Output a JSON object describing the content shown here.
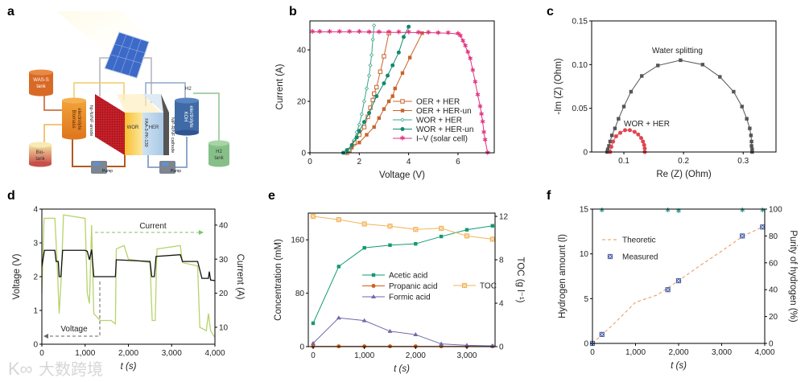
{
  "panels": [
    "a",
    "b",
    "c",
    "d",
    "e",
    "f"
  ],
  "watermark": "大数跨境",
  "diagram": {
    "was_tank": [
      "WAS-S",
      "tank"
    ],
    "biomass": [
      "Biomass",
      "electrolyte"
    ],
    "bio_tank": [
      "Bio-",
      "tank"
    ],
    "anode": "hp-Ni/NF anode",
    "wor": "WOR",
    "membrane": "FAA-3-PK-130",
    "her": "HER",
    "cathode": "NiP-R/NF cathode",
    "koh": [
      "KOH",
      "electrolyte"
    ],
    "h2": "H2",
    "h2_tank": [
      "H2",
      "tank"
    ],
    "pump1": "Pump",
    "pump2": "Pump"
  },
  "chart_data": [
    {
      "panel": "b",
      "type": "line",
      "xlabel": "Voltage (V)",
      "ylabel": "Current (A)",
      "xlim": [
        0,
        7.47
      ],
      "ylim": [
        0,
        51.25
      ],
      "xticks": [
        0,
        2,
        4,
        6
      ],
      "yticks": [
        0,
        20,
        40
      ],
      "legend_position": "center-right",
      "series": [
        {
          "name": "OER + HER",
          "color": "#c8642a",
          "marker": "square-open",
          "x": [
            1.5,
            1.6,
            1.8,
            2.0,
            2.2,
            2.35,
            2.45,
            2.55,
            2.6,
            2.7,
            2.85,
            3.0,
            3.2
          ],
          "y": [
            0,
            1,
            4,
            7,
            10,
            14,
            17.5,
            20.5,
            23,
            25.5,
            31.5,
            37.5,
            46.5
          ]
        },
        {
          "name": "OER + HER-un",
          "color": "#c8642a",
          "marker": "square",
          "x": [
            1.45,
            1.7,
            2.0,
            2.3,
            2.6,
            2.8,
            3.0,
            3.2,
            3.35,
            3.45,
            3.75,
            4.05,
            4.55
          ],
          "y": [
            0,
            2,
            4,
            7,
            10,
            13.5,
            17,
            20,
            22,
            25,
            31,
            37,
            46.5
          ]
        },
        {
          "name": "WOR + HER",
          "color": "#3aa58a",
          "marker": "diamond",
          "x": [
            1.45,
            1.6,
            1.7,
            1.8,
            1.9,
            2.0,
            2.1,
            2.2,
            2.3,
            2.4,
            2.45,
            2.5,
            2.55,
            2.6
          ],
          "y": [
            0,
            1,
            3,
            5,
            8,
            11,
            15,
            20,
            25,
            30,
            34,
            38,
            44,
            49.5
          ]
        },
        {
          "name": "WOR + HER-un",
          "color": "#13896d",
          "marker": "circle",
          "x": [
            1.35,
            1.5,
            1.7,
            1.9,
            2.0,
            2.2,
            2.4,
            2.7,
            3.0,
            3.15,
            3.35,
            3.6,
            3.8,
            4.0
          ],
          "y": [
            0,
            1,
            3,
            6,
            8.5,
            12,
            15.5,
            22,
            27,
            30,
            34,
            39,
            45,
            49
          ]
        },
        {
          "name": "I–V (solar cell)",
          "color": "#e0337f",
          "marker": "star",
          "x": [
            0.1,
            0.4,
            0.8,
            1.2,
            1.6,
            2.0,
            2.4,
            2.8,
            3.2,
            3.6,
            4.0,
            4.4,
            4.8,
            5.2,
            5.6,
            6.0,
            6.1,
            6.2,
            6.3,
            6.4,
            6.5,
            6.6,
            6.7,
            6.8,
            6.9,
            6.95,
            7.0,
            7.05,
            7.1,
            7.2
          ],
          "y": [
            47,
            47,
            47,
            47,
            47,
            47,
            46.9,
            46.9,
            46.8,
            46.8,
            46.8,
            46.7,
            46.7,
            46.6,
            46.5,
            46.2,
            45.5,
            43.5,
            41.5,
            39,
            36.5,
            32,
            27.5,
            22.5,
            18,
            15,
            12,
            8,
            5,
            0
          ]
        }
      ]
    },
    {
      "panel": "c",
      "type": "scatter",
      "xlabel": "Re (Z) (Ohm)",
      "ylabel": "-Im (Z) (Ohm)",
      "xlim": [
        0.046,
        0.355
      ],
      "ylim": [
        0,
        0.15
      ],
      "xticks": [
        0.1,
        0.2,
        0.3
      ],
      "yticks": [
        0,
        0.05,
        0.1,
        0.15
      ],
      "xtick_labels": [
        "0.1",
        "0.2",
        "0.3"
      ],
      "ytick_labels": [
        "0",
        "0.05",
        "0.10",
        "0.15"
      ],
      "annotations": [
        "Water splitting",
        "WOR + HER"
      ],
      "series": [
        {
          "name": "Water splitting",
          "color": "#555555",
          "marker": "square",
          "x": [
            0.072,
            0.073,
            0.075,
            0.077,
            0.08,
            0.085,
            0.091,
            0.1,
            0.112,
            0.13,
            0.157,
            0.195,
            0.232,
            0.261,
            0.284,
            0.298,
            0.306,
            0.311,
            0.313,
            0.314,
            0.314,
            0.315,
            0.315
          ],
          "y": [
            0,
            0.003,
            0.007,
            0.012,
            0.019,
            0.027,
            0.038,
            0.052,
            0.069,
            0.087,
            0.099,
            0.105,
            0.1,
            0.086,
            0.069,
            0.052,
            0.038,
            0.027,
            0.019,
            0.012,
            0.007,
            0.003,
            0
          ]
        },
        {
          "name": "WOR + HER",
          "color": "#e0454f",
          "marker": "circle",
          "x": [
            0.077,
            0.079,
            0.082,
            0.087,
            0.094,
            0.102,
            0.11,
            0.118,
            0.124,
            0.129,
            0.132,
            0.134,
            0.135,
            0.135
          ],
          "y": [
            0,
            0.006,
            0.012,
            0.018,
            0.022,
            0.025,
            0.025,
            0.023,
            0.02,
            0.016,
            0.012,
            0.008,
            0.004,
            0
          ]
        }
      ]
    },
    {
      "panel": "d",
      "type": "line",
      "xlabel": "t (s)",
      "ylabel": "Voltage (V)",
      "y2label": "Current (A)",
      "xlim": [
        0,
        4000
      ],
      "ylim": [
        0,
        4
      ],
      "y2lim": [
        5.03,
        44.7
      ],
      "xticks": [
        0,
        1000,
        2000,
        3000,
        4000
      ],
      "xtick_labels": [
        "0",
        "1,000",
        "2,000",
        "3,000",
        "4,000"
      ],
      "yticks": [
        0,
        1,
        2,
        3,
        4
      ],
      "y2ticks": [
        10,
        20,
        30,
        40
      ],
      "annotations": [
        "Current",
        "Voltage"
      ],
      "series": [
        {
          "name": "Current",
          "axis": "y2",
          "color": "#b7d36b",
          "x": [
            0,
            50,
            300,
            350,
            400,
            450,
            500,
            1000,
            1050,
            1100,
            1150,
            1200,
            1350,
            1600,
            1700,
            1720,
            1900,
            2000,
            2500,
            2550,
            2620,
            2660,
            3200,
            3250,
            3600,
            3650,
            3800,
            3850,
            3900,
            4000
          ],
          "y": [
            20,
            42,
            42,
            30,
            14,
            25,
            43,
            42,
            20,
            17,
            40,
            14,
            12,
            12,
            11,
            33,
            34,
            30,
            29,
            12,
            12,
            33,
            34,
            29,
            28,
            10,
            9,
            14,
            9,
            7
          ]
        },
        {
          "name": "Voltage",
          "axis": "y",
          "color": "#111111",
          "x": [
            0,
            60,
            300,
            330,
            380,
            400,
            440,
            480,
            1000,
            1050,
            1100,
            1150,
            1200,
            1700,
            1720,
            2500,
            2540,
            2600,
            2640,
            3200,
            3250,
            3600,
            3700,
            3850,
            3870,
            3900,
            4000
          ],
          "y": [
            2.3,
            2.78,
            2.78,
            2.45,
            2.45,
            2.0,
            2.0,
            2.78,
            2.78,
            2.75,
            2.5,
            2.8,
            2.0,
            2.0,
            2.5,
            2.45,
            2.0,
            2.0,
            2.6,
            2.65,
            2.45,
            2.45,
            1.95,
            1.95,
            2.15,
            1.9,
            1.88
          ]
        }
      ]
    },
    {
      "panel": "e",
      "type": "line",
      "xlabel": "t (s)",
      "ylabel": "Concentration (mM)",
      "y2label": "TOC (g l⁻¹)",
      "xlim": [
        -94,
        3550
      ],
      "ylim": [
        0,
        200
      ],
      "y2lim": [
        0,
        12.3
      ],
      "xticks": [
        0,
        1000,
        2000,
        3000
      ],
      "xtick_labels": [
        "0",
        "1,000",
        "2,000",
        "3,000"
      ],
      "yticks": [
        0,
        80,
        160
      ],
      "y2ticks": [
        0,
        4,
        8,
        12
      ],
      "legend_position": "center",
      "series": [
        {
          "name": "Acetic acid",
          "axis": "y",
          "color": "#139a73",
          "marker": "square",
          "x": [
            0,
            500,
            1000,
            1500,
            2000,
            2500,
            3000,
            3500
          ],
          "y": [
            35,
            120,
            148,
            152,
            154,
            165,
            175,
            181
          ]
        },
        {
          "name": "Propanic acid",
          "axis": "y",
          "color": "#d2601a",
          "marker": "circle",
          "x": [
            0,
            500,
            1000,
            1500,
            2000,
            2500,
            3000,
            3500
          ],
          "y": [
            0.5,
            0.5,
            0.5,
            0.5,
            0.5,
            0.5,
            0.5,
            0.5
          ]
        },
        {
          "name": "Formic acid",
          "axis": "y",
          "color": "#6e6aa8",
          "marker": "triangle",
          "x": [
            0,
            500,
            1000,
            1500,
            2000,
            2500,
            3000,
            3500
          ],
          "y": [
            5,
            43,
            39,
            23,
            18,
            4,
            2,
            1
          ]
        },
        {
          "name": "TOC",
          "axis": "y2",
          "color": "#f2b55a",
          "marker": "xsquare",
          "x": [
            0,
            500,
            1000,
            1500,
            2000,
            2500,
            3000,
            3500
          ],
          "y": [
            12,
            11.7,
            11.3,
            11.1,
            10.8,
            10.9,
            10.2,
            9.9
          ]
        }
      ]
    },
    {
      "panel": "f",
      "type": "line",
      "xlabel": "t (s)",
      "ylabel": "Hydrogen amount (l)",
      "y2label": "Purity of hydrogen (%)",
      "xlim": [
        0,
        4000
      ],
      "ylim": [
        0,
        15
      ],
      "y2lim": [
        0,
        100
      ],
      "xticks": [
        0,
        1000,
        2000,
        3000,
        4000
      ],
      "xtick_labels": [
        "0",
        "1,000",
        "2,000",
        "3,000",
        "4,000"
      ],
      "yticks": [
        0,
        5,
        10,
        15
      ],
      "y2ticks": [
        0,
        20,
        40,
        60,
        80,
        100
      ],
      "legend_position": "top-left",
      "series": [
        {
          "name": "Theoretic",
          "axis": "y",
          "color": "#e8955a",
          "dashed": true,
          "x": [
            0,
            500,
            1000,
            1500,
            2000,
            2500,
            3000,
            3500,
            3950
          ],
          "y": [
            0,
            2.2,
            4.6,
            5.4,
            7,
            8.7,
            10.3,
            12,
            13
          ]
        },
        {
          "name": "Measured",
          "axis": "y",
          "color": "#4a5fa8",
          "marker": "xsquare",
          "nolines": true,
          "x": [
            0,
            220,
            1750,
            2000,
            3480,
            3950
          ],
          "y": [
            0,
            1,
            6,
            7,
            12,
            13
          ]
        },
        {
          "name": "Purity",
          "axis": "y2",
          "color": "#2a9d8f",
          "marker": "star",
          "nolines": true,
          "nolegend": true,
          "x": [
            220,
            1750,
            2000,
            3480,
            3950
          ],
          "y": [
            99,
            99,
            98.5,
            99,
            99
          ]
        }
      ]
    }
  ]
}
